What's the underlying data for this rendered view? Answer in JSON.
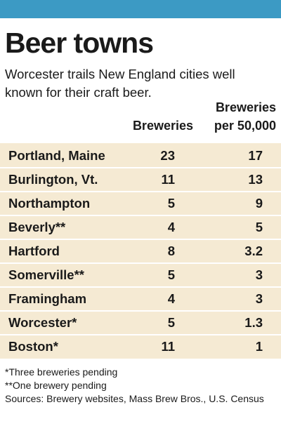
{
  "header": {
    "title": "Beer towns",
    "subtitle": "Worcester trails New England cities well known for their craft beer.",
    "accent_color": "#3c9ac4",
    "table_background": "#f5ead3"
  },
  "columns": {
    "breweries": "Breweries",
    "per_capita_line1": "Breweries",
    "per_capita_line2": "per 50,000"
  },
  "rows": [
    {
      "city": "Portland, Maine",
      "breweries": "23",
      "per_50000": "17"
    },
    {
      "city": "Burlington, Vt.",
      "breweries": "11",
      "per_50000": "13"
    },
    {
      "city": "Northampton",
      "breweries": "5",
      "per_50000": "9"
    },
    {
      "city": "Beverly**",
      "breweries": "4",
      "per_50000": "5"
    },
    {
      "city": "Hartford",
      "breweries": "8",
      "per_50000": "3.2"
    },
    {
      "city": "Somerville**",
      "breweries": "5",
      "per_50000": "3"
    },
    {
      "city": "Framingham",
      "breweries": "4",
      "per_50000": "3"
    },
    {
      "city": "Worcester*",
      "breweries": "5",
      "per_50000": "1.3"
    },
    {
      "city": "Boston*",
      "breweries": "11",
      "per_50000": "1"
    }
  ],
  "footer": {
    "note1": "*Three breweries pending",
    "note2": "**One brewery pending",
    "sources": "Sources: Brewery websites, Mass Brew Bros., U.S. Census"
  },
  "chart_data": {
    "type": "table",
    "title": "Beer towns",
    "subtitle": "Worcester trails New England cities well known for their craft beer.",
    "columns": [
      "Breweries",
      "Breweries per 50,000"
    ],
    "categories": [
      "Portland, Maine",
      "Burlington, Vt.",
      "Northampton",
      "Beverly**",
      "Hartford",
      "Somerville**",
      "Framingham",
      "Worcester*",
      "Boston*"
    ],
    "series": [
      {
        "name": "Breweries",
        "values": [
          23,
          11,
          5,
          4,
          8,
          5,
          4,
          5,
          11
        ]
      },
      {
        "name": "Breweries per 50,000",
        "values": [
          17,
          13,
          9,
          5,
          3.2,
          3,
          3,
          1.3,
          1
        ]
      }
    ]
  }
}
